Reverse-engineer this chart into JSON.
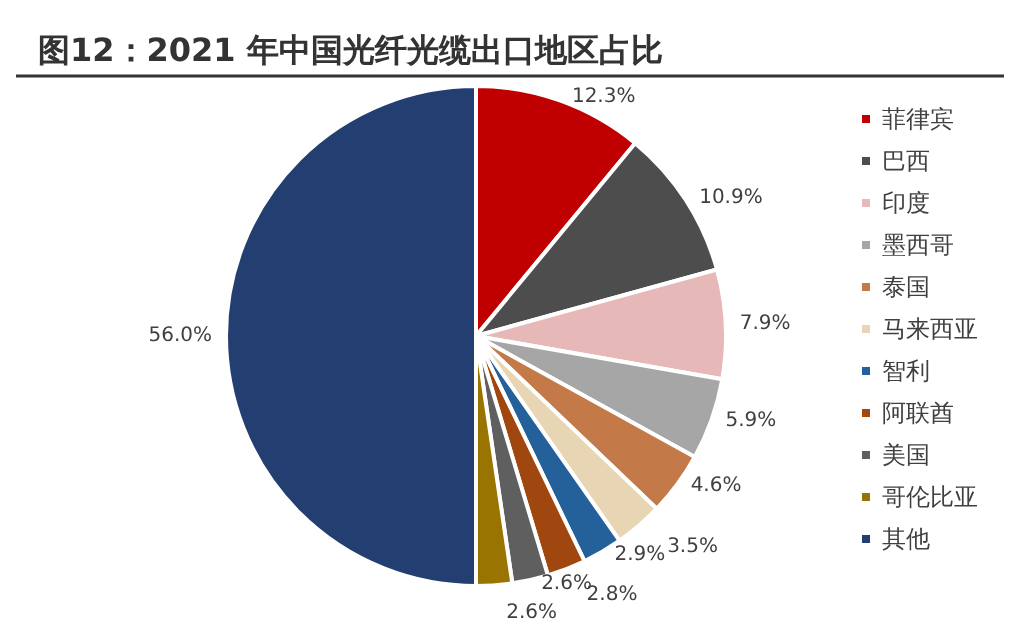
{
  "chart_data": {
    "type": "pie",
    "title": "图12：2021 年中国光纤光缆出口地区占比",
    "categories": [
      "菲律宾",
      "巴西",
      "印度",
      "墨西哥",
      "泰国",
      "马来西亚",
      "智利",
      "阿联酋",
      "美国",
      "哥伦比亚",
      "其他"
    ],
    "values": [
      12.3,
      10.9,
      7.9,
      5.9,
      4.6,
      3.5,
      2.9,
      2.8,
      2.6,
      2.6,
      56.0
    ],
    "value_labels": [
      "12.3%",
      "10.9%",
      "7.9%",
      "5.9%",
      "4.6%",
      "3.5%",
      "2.9%",
      "2.8%",
      "2.6%",
      "2.6%",
      "56.0%"
    ],
    "colors": [
      "#c00000",
      "#4d4d4d",
      "#e6b9b8",
      "#a6a6a6",
      "#c47a48",
      "#e8d5b3",
      "#24609a",
      "#a0460f",
      "#5f5f5f",
      "#9a7400",
      "#233f72"
    ],
    "legend": "right"
  }
}
